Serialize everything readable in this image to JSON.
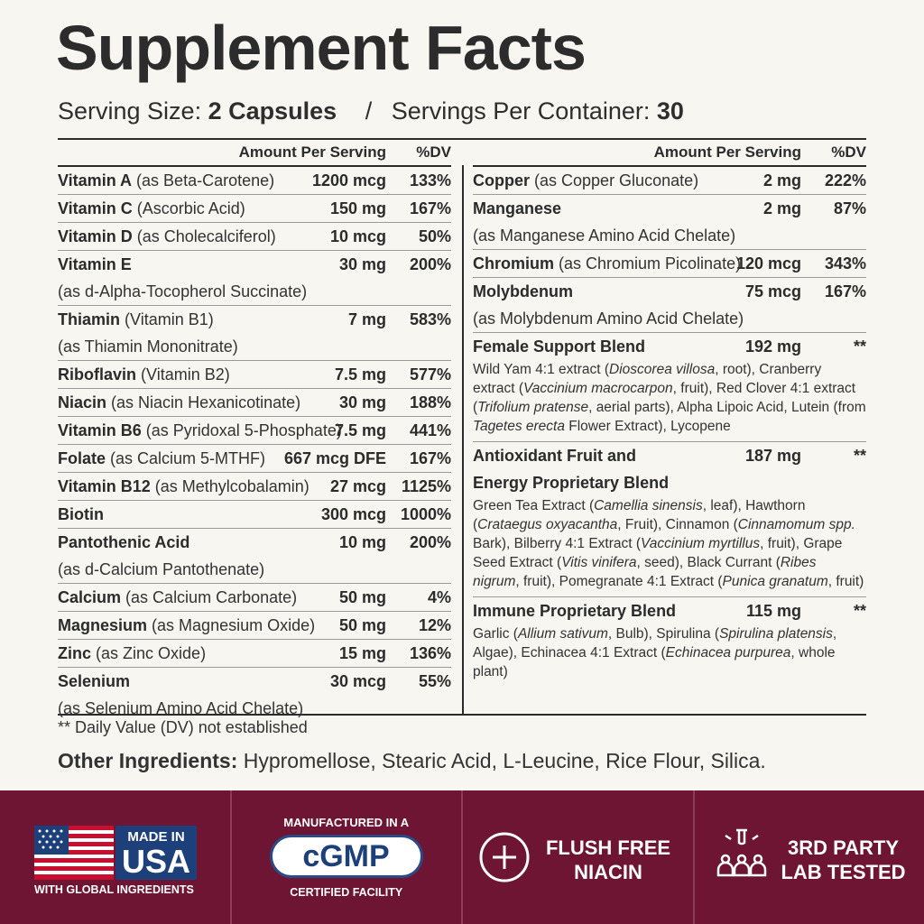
{
  "title": "Supplement Facts",
  "serving": {
    "size_label": "Serving Size:",
    "size_value": "2 Capsules",
    "separator": "/",
    "per_container_label": "Servings Per Container:",
    "per_container_value": "30"
  },
  "table_header": {
    "amount": "Amount Per Serving",
    "dv": "%DV"
  },
  "left_rows": [
    {
      "name": "Vitamin A",
      "detail": "(as Beta-Carotene)",
      "amount": "1200 mcg",
      "dv": "133%",
      "sub": ""
    },
    {
      "name": "Vitamin C",
      "detail": "(Ascorbic Acid)",
      "amount": "150 mg",
      "dv": "167%",
      "sub": ""
    },
    {
      "name": "Vitamin D",
      "detail": "(as Cholecalciferol)",
      "amount": "10 mcg",
      "dv": "50%",
      "sub": ""
    },
    {
      "name": "Vitamin E",
      "detail": "",
      "amount": "30 mg",
      "dv": "200%",
      "sub": "(as d-Alpha-Tocopherol Succinate)"
    },
    {
      "name": "Thiamin",
      "detail": "(Vitamin B1)",
      "amount": "7 mg",
      "dv": "583%",
      "sub": "(as Thiamin Mononitrate)"
    },
    {
      "name": "Riboflavin",
      "detail": "(Vitamin B2)",
      "amount": "7.5 mg",
      "dv": "577%",
      "sub": ""
    },
    {
      "name": "Niacin",
      "detail": "(as Niacin Hexanicotinate)",
      "amount": "30 mg",
      "dv": "188%",
      "sub": ""
    },
    {
      "name": "Vitamin B6",
      "detail": "(as Pyridoxal 5-Phosphate)",
      "amount": "7.5 mg",
      "dv": "441%",
      "sub": ""
    },
    {
      "name": "Folate",
      "detail": "(as Calcium 5-MTHF)",
      "amount": "667 mcg DFE",
      "dv": "167%",
      "sub": ""
    },
    {
      "name": "Vitamin B12",
      "detail": "(as Methylcobalamin)",
      "amount": "27 mcg",
      "dv": "1125%",
      "sub": ""
    },
    {
      "name": "Biotin",
      "detail": "",
      "amount": "300 mcg",
      "dv": "1000%",
      "sub": ""
    },
    {
      "name": "Pantothenic Acid",
      "detail": "",
      "amount": "10 mg",
      "dv": "200%",
      "sub": "(as d-Calcium Pantothenate)"
    },
    {
      "name": "Calcium",
      "detail": "(as Calcium Carbonate)",
      "amount": "50 mg",
      "dv": "4%",
      "sub": ""
    },
    {
      "name": "Magnesium",
      "detail": "(as Magnesium Oxide)",
      "amount": "50 mg",
      "dv": "12%",
      "sub": ""
    },
    {
      "name": "Zinc",
      "detail": "(as Zinc Oxide)",
      "amount": "15 mg",
      "dv": "136%",
      "sub": ""
    },
    {
      "name": "Selenium",
      "detail": "",
      "amount": "30 mcg",
      "dv": "55%",
      "sub": "(as Selenium Amino Acid Chelate)"
    }
  ],
  "right_rows": [
    {
      "name": "Copper",
      "detail": "(as Copper Gluconate)",
      "amount": "2 mg",
      "dv": "222%",
      "sub": ""
    },
    {
      "name": "Manganese",
      "detail": "",
      "amount": "2 mg",
      "dv": "87%",
      "sub": "(as Manganese Amino Acid Chelate)"
    },
    {
      "name": "Chromium",
      "detail": "(as Chromium Picolinate)",
      "amount": "120 mcg",
      "dv": "343%",
      "sub": ""
    },
    {
      "name": "Molybdenum",
      "detail": "",
      "amount": "75 mcg",
      "dv": "167%",
      "sub": "(as Molybdenum Amino Acid Chelate)"
    }
  ],
  "blends": [
    {
      "name_lines": [
        "Female Support Blend"
      ],
      "amount": "192 mg",
      "dv": "**",
      "desc_html": "Wild Yam 4:1 extract (<i>Dioscorea villosa</i>, root), Cranberry extract (<i>Vaccinium macrocarpon</i>, fruit), Red Clover 4:1 extract (<i>Trifolium pratense</i>, aerial parts), Alpha Lipoic Acid, Lutein (from <i>Tagetes erecta</i> Flower Extract), Lycopene"
    },
    {
      "name_lines": [
        "Antioxidant Fruit and",
        "Energy Proprietary Blend"
      ],
      "amount": "187 mg",
      "dv": "**",
      "desc_html": "Green Tea Extract (<i>Camellia sinensis</i>, leaf), Hawthorn (<i>Crataegus oxyacantha</i>, Fruit), Cinnamon (<i>Cinnamomum spp.</i> Bark), Bilberry 4:1 Extract (<i>Vaccinium myrtillus</i>, fruit), Grape Seed Extract (<i>Vitis vinifera</i>, seed), Black Currant (<i>Ribes nigrum</i>, fruit), Pomegranate 4:1 Extract (<i>Punica granatum</i>, fruit)"
    },
    {
      "name_lines": [
        "Immune Proprietary Blend"
      ],
      "amount": "115 mg",
      "dv": "**",
      "desc_html": "Garlic (<i>Allium sativum</i>, Bulb), Spirulina (<i>Spirulina platensis</i>, Algae), Echinacea 4:1 Extract (<i>Echinacea purpurea</i>, whole plant)"
    }
  ],
  "footnote": "** Daily Value (DV) not established",
  "other_ingredients": {
    "label": "Other Ingredients:",
    "value": "Hypromellose, Stearic Acid, L-Leucine, Rice Flour, Silica."
  },
  "badges": {
    "usa": {
      "made_in": "MADE IN",
      "country": "USA",
      "caption": "WITH GLOBAL INGREDIENTS",
      "icon": "us-flag-icon"
    },
    "cgmp": {
      "top": "MANUFACTURED IN A",
      "mark": "cGMP",
      "bottom": "CERTIFIED FACILITY"
    },
    "flush": {
      "line1": "FLUSH FREE",
      "line2": "NIACIN",
      "icon": "plus-circle-icon"
    },
    "lab": {
      "line1": "3RD PARTY",
      "line2": "LAB TESTED",
      "icon": "lab-test-icon"
    }
  },
  "colors": {
    "background": "#f7f6f1",
    "banner": "#6e1533",
    "text": "#2b2b2b",
    "badge_blue": "#1d3f7a"
  }
}
